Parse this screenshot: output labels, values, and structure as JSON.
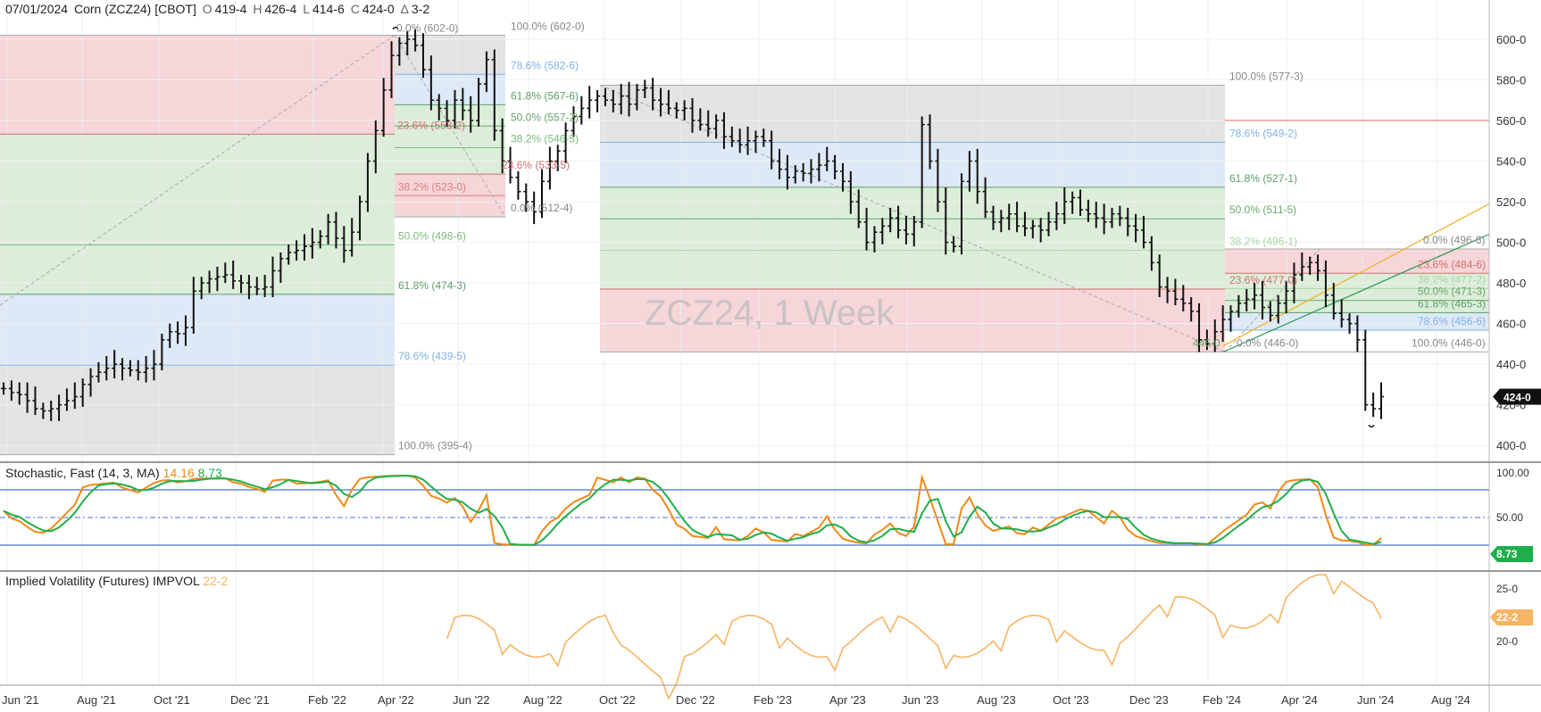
{
  "header": {
    "date": "07/01/2024",
    "symbol": "Corn (ZCZ24) [CBOT]",
    "open_label": "O",
    "open": "419-4",
    "high_label": "H",
    "high": "426-4",
    "low_label": "L",
    "low": "414-6",
    "close_label": "C",
    "close": "424-0",
    "change_label": "Δ",
    "change": "3-2"
  },
  "watermark": "ZCZ24, 1 Week",
  "last_price_tag": "424-0",
  "colors": {
    "red_zone": "#f6d6d8",
    "green_zone": "#dcedd9",
    "blue_zone": "#dde9f7",
    "gray_zone": "#e3e3e3",
    "stoch_k": "#ef8a17",
    "stoch_d": "#1fae4b",
    "ivol": "#f7b463",
    "trend": "#f0b020"
  },
  "x_axis": {
    "ticks": [
      "Jun '21",
      "Aug '21",
      "Oct '21",
      "Dec '21",
      "Feb '22",
      "Apr '22",
      "Jun '22",
      "Aug '22",
      "Oct '22",
      "Dec '22",
      "Feb '23",
      "Apr '23",
      "Jun '23",
      "Aug '23",
      "Oct '23",
      "Dec '23",
      "Feb '24",
      "Apr '24",
      "Jun '24",
      "Aug '24"
    ]
  },
  "price_axis": {
    "ticks": [
      "600-0",
      "580-0",
      "560-0",
      "540-0",
      "520-0",
      "500-0",
      "480-0",
      "460-0",
      "440-0",
      "420-0",
      "400-0"
    ]
  },
  "fib_labels": [
    {
      "text": "0.0% (602-0)",
      "color": "#888"
    },
    {
      "text": "100.0% (602-0)",
      "color": "#888"
    },
    {
      "text": "78.6% (582-6)",
      "color": "#7fb2e6"
    },
    {
      "text": "61.8% (567-6)",
      "color": "#5e9e69"
    },
    {
      "text": "50.0% (557-2)",
      "color": "#6aa76b"
    },
    {
      "text": "38.2% (546-5)",
      "color": "#7cbb7c"
    },
    {
      "text": "23.6% (553-2)",
      "color": "#d07070"
    },
    {
      "text": "23.6% (533-5)",
      "color": "#d07070"
    },
    {
      "text": "38.2% (523-0)",
      "color": "#d88080"
    },
    {
      "text": "0.0% (512-4)",
      "color": "#888"
    },
    {
      "text": "50.0% (498-6)",
      "color": "#7cbb7c"
    },
    {
      "text": "61.8% (474-3)",
      "color": "#5e9e69"
    },
    {
      "text": "78.6% (439-5)",
      "color": "#7fb2e6"
    },
    {
      "text": "100.0% (395-4)",
      "color": "#888"
    },
    {
      "text": "100.0% (577-3)",
      "color": "#888"
    },
    {
      "text": "78.6% (549-2)",
      "color": "#7fb2e6"
    },
    {
      "text": "61.8% (527-1)",
      "color": "#5e9e69"
    },
    {
      "text": "50.0% (511-5)",
      "color": "#6aa76b"
    },
    {
      "text": "38.2% (496-1)",
      "color": "#a9d6a6"
    },
    {
      "text": "23.6% (477-0)",
      "color": "#d07070"
    },
    {
      "text": "0.0% (446-0)",
      "color": "#888"
    },
    {
      "text": "446-0",
      "color": "#6aa76b"
    },
    {
      "text": "0.0% (496-6)",
      "color": "#888"
    },
    {
      "text": "23.6% (484-6)",
      "color": "#d07070"
    },
    {
      "text": "38.2% (477-2)",
      "color": "#a9d6a6"
    },
    {
      "text": "50.0% (471-3)",
      "color": "#6aa76b"
    },
    {
      "text": "61.8% (465-3)",
      "color": "#5e9e69"
    },
    {
      "text": "78.6% (456-6)",
      "color": "#7fb2e6"
    },
    {
      "text": "100.0% (446-0)",
      "color": "#888"
    }
  ],
  "stochastic": {
    "title": "Stochastic, Fast (14, 3, MA)",
    "k_value": "14.16",
    "d_value": "8.73",
    "axis_ticks": [
      "100.00",
      "50.00"
    ],
    "tag": "8.73"
  },
  "ivol": {
    "title": "Implied Volatility (Futures) IMPVOL",
    "value": "22-2",
    "axis_ticks": [
      "25-0",
      "20-0"
    ],
    "tag": "22-2"
  },
  "chart_data": {
    "type": "ohlc",
    "title": "07/01/2024 Corn (ZCZ24) [CBOT]",
    "price_range": [
      395,
      610
    ],
    "closes_weekly_approx": [
      428,
      426,
      425,
      422,
      418,
      417,
      418,
      420,
      422,
      424,
      430,
      434,
      436,
      438,
      440,
      438,
      437,
      436,
      438,
      440,
      452,
      456,
      455,
      458,
      476,
      480,
      482,
      483,
      484,
      481,
      480,
      478,
      477,
      478,
      486,
      492,
      495,
      496,
      498,
      500,
      503,
      510,
      502,
      496,
      505,
      520,
      540,
      555,
      575,
      592,
      598,
      600,
      597,
      585,
      570,
      566,
      560,
      570,
      565,
      560,
      578,
      590,
      555,
      540,
      532,
      525,
      520,
      515,
      530,
      540,
      545,
      555,
      562,
      566,
      570,
      572,
      570,
      568,
      572,
      568,
      575,
      576,
      570,
      568,
      566,
      565,
      566,
      560,
      558,
      556,
      560,
      552,
      550,
      548,
      550,
      552,
      550,
      540,
      536,
      532,
      535,
      534,
      536,
      538,
      540,
      535,
      530,
      520,
      510,
      500,
      505,
      508,
      512,
      506,
      504,
      510,
      558,
      540,
      520,
      500,
      498,
      530,
      540,
      525,
      515,
      510,
      512,
      514,
      508,
      507,
      508,
      506,
      510,
      514,
      520,
      522,
      516,
      514,
      512,
      510,
      514,
      512,
      508,
      506,
      500,
      490,
      478,
      476,
      472,
      470,
      466,
      452,
      450,
      456,
      462,
      466,
      470,
      472,
      474,
      468,
      464,
      470,
      476,
      484,
      488,
      490,
      486,
      474,
      465,
      462,
      460,
      452,
      420,
      418,
      424
    ],
    "stochastic_fast": {
      "k_last": 14.16,
      "d_last": 8.73,
      "range": [
        0,
        100
      ]
    },
    "implied_volatility": {
      "last": 22.2,
      "range": [
        17.5,
        26.5
      ]
    }
  }
}
